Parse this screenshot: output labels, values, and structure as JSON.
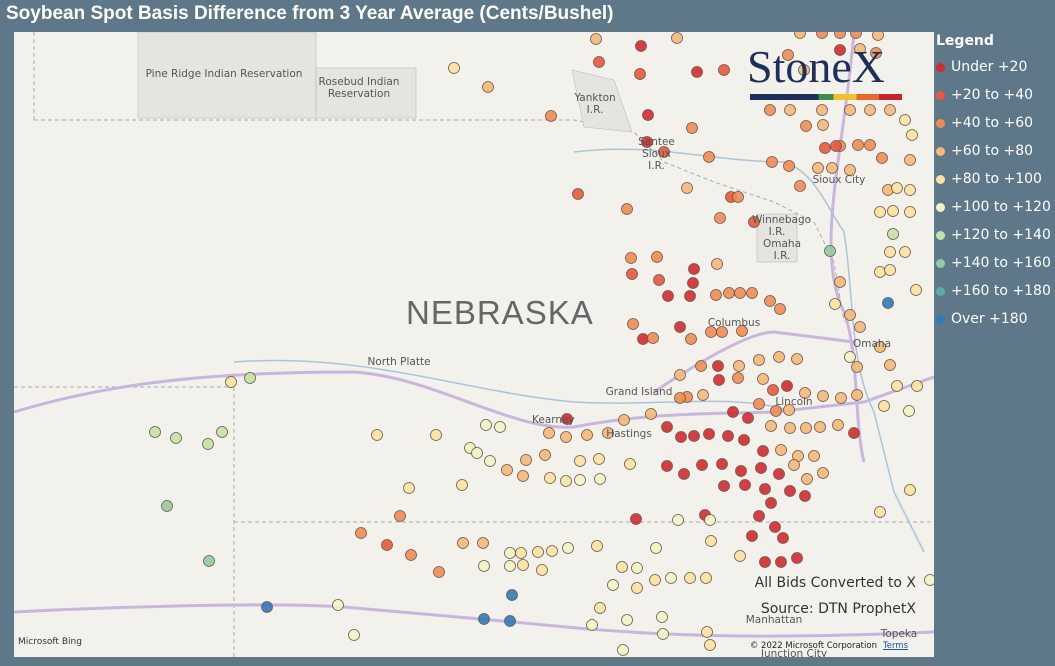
{
  "header": {
    "title": "Soybean Spot Basis Difference from 3 Year Average (Cents/Bushel)"
  },
  "legend": {
    "title": "Legend",
    "items": [
      {
        "label": "Under +20",
        "color": "#d42a2f"
      },
      {
        "label": "+20 to +40",
        "color": "#e9583d"
      },
      {
        "label": "+40 to +60",
        "color": "#f28c52"
      },
      {
        "label": "+60 to +80",
        "color": "#f7b777"
      },
      {
        "label": "+80 to +100",
        "color": "#fbe3a0"
      },
      {
        "label": "+100 to +120",
        "color": "#f1f5c4"
      },
      {
        "label": "+120 to +140",
        "color": "#c4e3a6"
      },
      {
        "label": "+140 to +160",
        "color": "#93cc9e"
      },
      {
        "label": "+160 to +180",
        "color": "#5ea9a5"
      },
      {
        "label": "Over +180",
        "color": "#2e7ab8"
      }
    ]
  },
  "map": {
    "state_label": "NEBRASKA",
    "places": [
      "Pine Ridge Indian Reservation",
      "Rosebud Indian Reservation",
      "Yankton I.R.",
      "Santee Sioux I.R.",
      "Sioux City",
      "Winnebago I.R.",
      "Omaha I.R.",
      "Columbus",
      "Omaha",
      "North Platte",
      "Grand Island",
      "Kearney",
      "Hastings",
      "Lincoln",
      "Manhattan",
      "Topeka",
      "Junction City"
    ],
    "logo": "StoneX",
    "notes": [
      "All Bids Converted to X",
      "Source: DTN ProphetX"
    ],
    "attribution": "Microsoft Bing",
    "copyright": "© 2022 Microsoft Corporation",
    "terms": "Terms"
  }
}
